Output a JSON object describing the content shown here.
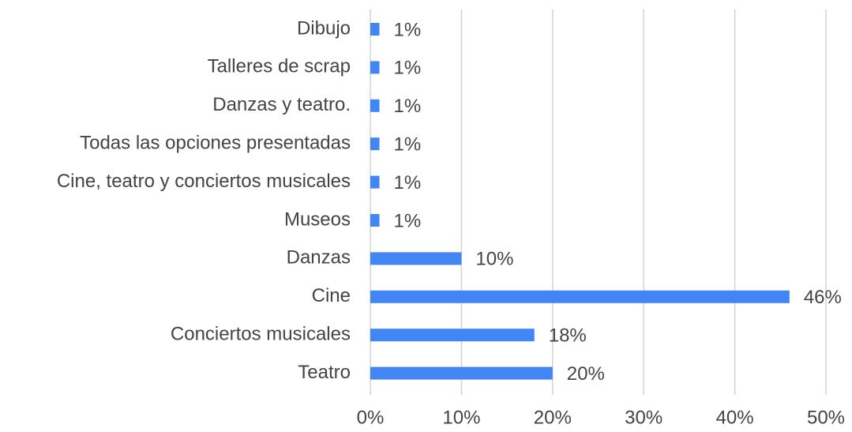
{
  "chart_data": {
    "type": "barh",
    "categories": [
      "Dibujo",
      "Talleres de scrap",
      "Danzas y teatro.",
      "Todas las opciones presentadas",
      "Cine, teatro y conciertos musicales",
      "Museos",
      "Danzas",
      "Cine",
      "Conciertos musicales",
      "Teatro"
    ],
    "values": [
      1,
      1,
      1,
      1,
      1,
      1,
      10,
      46,
      18,
      20
    ],
    "value_labels": [
      "1%",
      "1%",
      "1%",
      "1%",
      "1%",
      "1%",
      "10%",
      "46%",
      "18%",
      "20%"
    ],
    "color": "#4285f4",
    "xlim": [
      0,
      50
    ],
    "xticks": [
      {
        "value": 0,
        "label": "0%"
      },
      {
        "value": 10,
        "label": "10%"
      },
      {
        "value": 20,
        "label": "20%"
      },
      {
        "value": 30,
        "label": "30%"
      },
      {
        "value": 40,
        "label": "40%"
      },
      {
        "value": 50,
        "label": "50%"
      }
    ],
    "grid": true
  }
}
